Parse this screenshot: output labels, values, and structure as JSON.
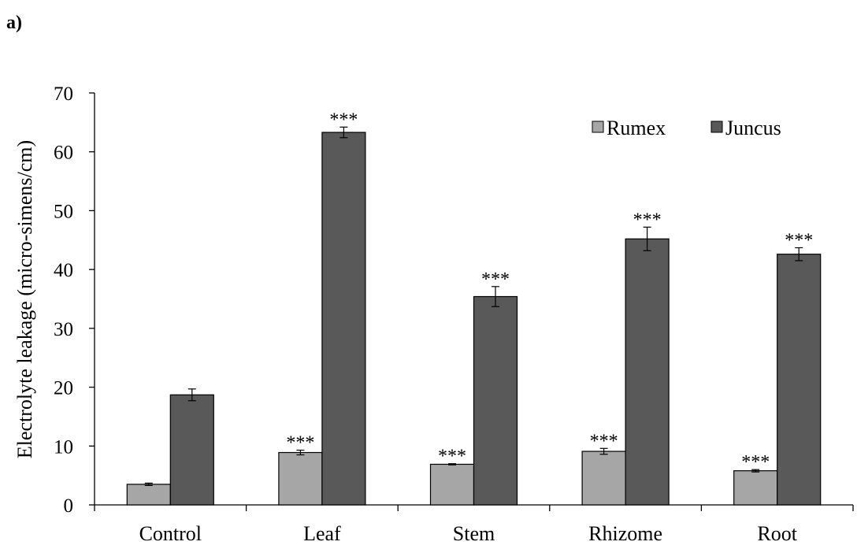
{
  "panel_label": "a)",
  "chart_data": {
    "type": "bar",
    "categories": [
      "Control",
      "Leaf",
      "Stem",
      "Rhizome",
      "Root"
    ],
    "series": [
      {
        "name": "Rumex",
        "color": "#a6a6a6",
        "values": [
          3.5,
          8.9,
          6.9,
          9.1,
          5.8
        ],
        "errors": [
          0.2,
          0.4,
          0.1,
          0.5,
          0.2
        ],
        "significance": [
          "",
          "***",
          "***",
          "***",
          "***"
        ]
      },
      {
        "name": "Juncus",
        "color": "#595959",
        "values": [
          18.7,
          63.3,
          35.4,
          45.2,
          42.6
        ],
        "errors": [
          1.0,
          0.9,
          1.7,
          2.0,
          1.1
        ],
        "significance": [
          "",
          "***",
          "***",
          "***",
          "***"
        ]
      }
    ],
    "ylabel": "Electrolyte leakage (micro-simens/cm)",
    "xlabel": "",
    "ylim": [
      0,
      70
    ],
    "yticks": [
      0,
      10,
      20,
      30,
      40,
      50,
      60,
      70
    ],
    "grid": false,
    "legend_position": "top-right"
  }
}
